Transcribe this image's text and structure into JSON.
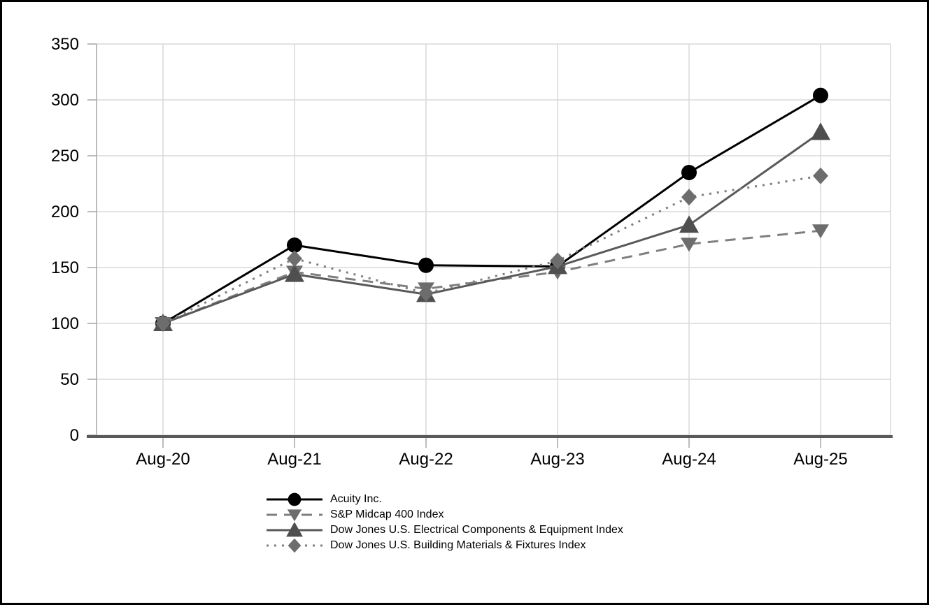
{
  "colors": {
    "background": "#ffffff",
    "frame_border": "#000000",
    "grid": "#d9d9d9",
    "y_axis": "#a6a6a6",
    "x_axis": "#595959",
    "tick": "#a6a6a6",
    "text": "#000000"
  },
  "chart_data": {
    "type": "line",
    "title": "",
    "xlabel": "",
    "ylabel": "",
    "categories": [
      "Aug-20",
      "Aug-21",
      "Aug-22",
      "Aug-23",
      "Aug-24",
      "Aug-25"
    ],
    "series": [
      {
        "name": "Acuity Inc.",
        "values": [
          100,
          170,
          152,
          151,
          235,
          304
        ],
        "color": "#000000",
        "marker_color": "#000000",
        "line_style": "solid",
        "marker": "circle"
      },
      {
        "name": "S&P Midcap 400 Index",
        "values": [
          100,
          146,
          131,
          146,
          171,
          183
        ],
        "color": "#7f7f7f",
        "marker_color": "#6d6d6d",
        "line_style": "dashed",
        "marker": "triangle-down"
      },
      {
        "name": "Dow Jones U.S. Electrical Components & Equipment Index",
        "values": [
          100,
          144,
          126,
          151,
          188,
          271
        ],
        "color": "#595959",
        "marker_color": "#4f4f4f",
        "line_style": "solid",
        "marker": "triangle-up"
      },
      {
        "name": "Dow Jones U.S. Building Materials & Fixtures Index",
        "values": [
          100,
          158,
          127,
          156,
          213,
          232
        ],
        "color": "#7f7f7f",
        "marker_color": "#6d6d6d",
        "line_style": "dotted",
        "marker": "diamond"
      }
    ],
    "ylim": [
      0,
      350
    ],
    "ytick_step": 50,
    "grid": true,
    "legend_position": "bottom-left"
  }
}
